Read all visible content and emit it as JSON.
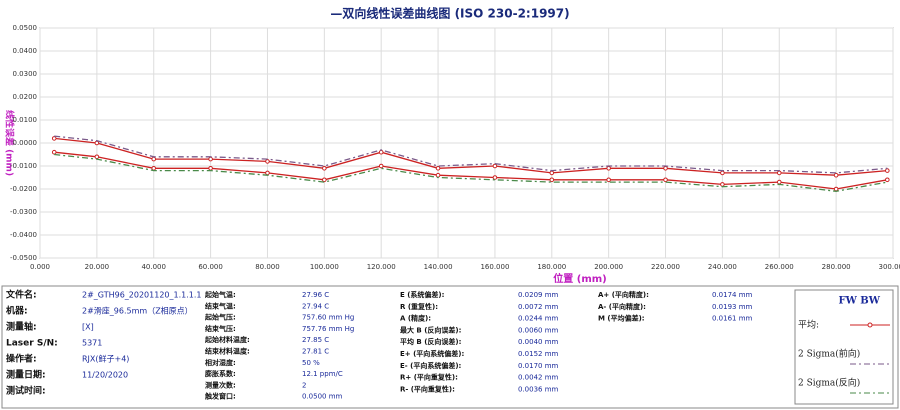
{
  "chart_data": {
    "type": "line",
    "title": "—双向线性误差曲线图 (ISO 230-2:1997)",
    "xlabel": "位置 (mm)",
    "ylabel": "线性误差 (mm)",
    "x": [
      5,
      20,
      40,
      60,
      80,
      100,
      120,
      140,
      160,
      180,
      200,
      220,
      240,
      260,
      280,
      298
    ],
    "series": [
      {
        "name": "平均:",
        "color": "#cc2222",
        "marker": "circle",
        "values": [
          0.002,
          0.0,
          -0.007,
          -0.007,
          -0.008,
          -0.011,
          -0.004,
          -0.011,
          -0.01,
          -0.013,
          -0.011,
          -0.011,
          -0.013,
          -0.013,
          -0.014,
          -0.012
        ],
        "values2": [
          -0.004,
          -0.006,
          -0.011,
          -0.011,
          -0.013,
          -0.016,
          -0.01,
          -0.014,
          -0.015,
          -0.016,
          -0.016,
          -0.016,
          -0.018,
          -0.017,
          -0.02,
          -0.016
        ]
      },
      {
        "name": "2 Sigma(前向)",
        "color": "#7a5a8a",
        "dash": "6 3 2 3",
        "values": [
          0.003,
          0.001,
          -0.006,
          -0.006,
          -0.007,
          -0.01,
          -0.003,
          -0.01,
          -0.009,
          -0.012,
          -0.01,
          -0.01,
          -0.012,
          -0.012,
          -0.013,
          -0.011
        ]
      },
      {
        "name": "2 Sigma(反向)",
        "color": "#4a8a4a",
        "dash": "6 3 2 3",
        "values": [
          -0.005,
          -0.007,
          -0.012,
          -0.012,
          -0.014,
          -0.017,
          -0.011,
          -0.015,
          -0.016,
          -0.017,
          -0.017,
          -0.017,
          -0.019,
          -0.018,
          -0.021,
          -0.017
        ]
      }
    ],
    "xlim": [
      0,
      300
    ],
    "xticks": [
      {
        "value": 0,
        "label": "0.000"
      },
      {
        "value": 20,
        "label": "20.000"
      },
      {
        "value": 40,
        "label": "40.000"
      },
      {
        "value": 60,
        "label": "60.000"
      },
      {
        "value": 80,
        "label": "80.000"
      },
      {
        "value": 100,
        "label": "100.000"
      },
      {
        "value": 120,
        "label": "120.000"
      },
      {
        "value": 140,
        "label": "140.000"
      },
      {
        "value": 160,
        "label": "160.000"
      },
      {
        "value": 180,
        "label": "180.000"
      },
      {
        "value": 200,
        "label": "200.000"
      },
      {
        "value": 220,
        "label": "220.000"
      },
      {
        "value": 240,
        "label": "240.000"
      },
      {
        "value": 260,
        "label": "260.000"
      },
      {
        "value": 280,
        "label": "280.000"
      },
      {
        "value": 300,
        "label": "300.000"
      }
    ],
    "ylim": [
      -0.05,
      0.05
    ],
    "yticks": [
      {
        "value": 0.05,
        "label": "0.0500"
      },
      {
        "value": 0.04,
        "label": "0.0400"
      },
      {
        "value": 0.03,
        "label": "0.0300"
      },
      {
        "value": 0.02,
        "label": "0.0200"
      },
      {
        "value": 0.01,
        "label": "0.0100"
      },
      {
        "value": 0,
        "label": "0.0000"
      },
      {
        "value": -0.01,
        "label": "-0.0100"
      },
      {
        "value": -0.02,
        "label": "-0.0200"
      },
      {
        "value": -0.03,
        "label": "-0.0300"
      },
      {
        "value": -0.04,
        "label": "-0.0400"
      },
      {
        "value": -0.05,
        "label": "-0.0500"
      }
    ],
    "grid": true,
    "legend_header": "FW BW"
  },
  "info_panel": [
    [
      [
        "文件名:",
        "2#_GTH96_20201120_1.1.1.1"
      ],
      [
        "机器:",
        "2#滑座_96.5mm（Z相原点）"
      ],
      [
        "测量轴:",
        "[X]"
      ],
      [
        "Laser S/N:",
        "5371"
      ],
      [
        "操作者:",
        "RJX(鲜子+4)"
      ],
      [
        "测量日期:",
        "11/20/2020"
      ],
      [
        "测试时间:"
      ]
    ],
    [
      [
        "起始气温:",
        "27.96 C"
      ],
      [
        "结束气温:",
        "27.94 C"
      ],
      [
        "起始气压:",
        "757.60 mm Hg"
      ],
      [
        "结束气压:",
        "757.76 mm Hg"
      ],
      [
        "起始材料温度:",
        "27.85 C"
      ],
      [
        "结束材料温度:",
        "27.81 C"
      ],
      [
        "相对湿度:",
        "50 %"
      ],
      [
        "膨胀系数:",
        "12.1 ppm/C"
      ],
      [
        "测量次数:",
        "2"
      ],
      [
        "触发窗口:",
        "0.0500 mm"
      ]
    ],
    [
      [
        "E (系统偏差):",
        "0.0209 mm"
      ],
      [
        "R (重复性):",
        "0.0072 mm"
      ],
      [
        "A (精度):",
        "0.0244 mm"
      ],
      [
        "最大 B (反向误差):",
        "0.0060 mm"
      ],
      [
        "平均 B (反向误差):",
        "0.0040 mm"
      ],
      [
        "E+ (平向系统偏差):",
        "0.0152 mm"
      ],
      [
        "E- (平向系统偏差):",
        "0.0170 mm"
      ],
      [
        "R+ (平向重复性):",
        "0.0042 mm"
      ],
      [
        "R- (平向重复性):",
        "0.0036 mm"
      ]
    ],
    [
      [
        "A+ (平向精度):",
        "0.0174 mm"
      ],
      [
        "A- (平向精度):",
        "0.0193 mm"
      ],
      [
        "M (平均偏差):",
        "0.0161 mm"
      ]
    ]
  ]
}
